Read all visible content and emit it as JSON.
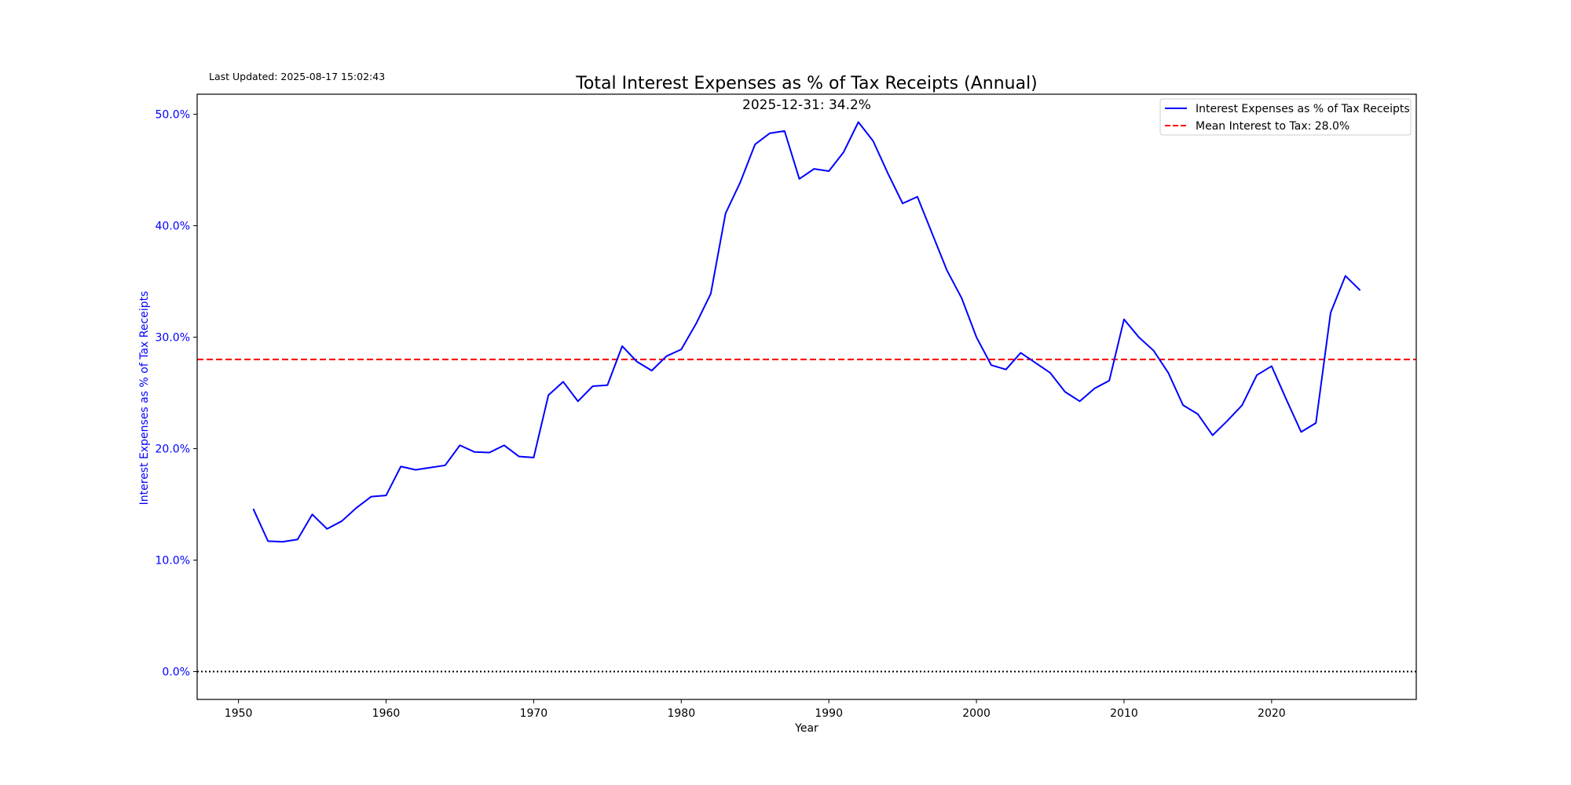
{
  "last_updated": "Last Updated: 2025-08-17 15:02:43",
  "colors": {
    "series": "#0000ff",
    "mean_line": "#ff0000",
    "zero_line": "#000000",
    "y_axis_text": "#0000ff",
    "text": "#000000"
  },
  "chart_data": {
    "type": "line",
    "title": "Total Interest Expenses as % of Tax Receipts (Annual)",
    "annotation": "2025-12-31: 34.2%",
    "xlabel": "Year",
    "ylabel": "Interest Expenses as % of Tax Receipts",
    "xlim": [
      1947.2,
      2029.8
    ],
    "ylim": [
      -2.5,
      51.8
    ],
    "x_ticks": [
      1950,
      1960,
      1970,
      1980,
      1990,
      2000,
      2010,
      2020
    ],
    "x_tick_labels": [
      "1950",
      "1960",
      "1970",
      "1980",
      "1990",
      "2000",
      "2010",
      "2020"
    ],
    "y_ticks": [
      0,
      10,
      20,
      30,
      40,
      50
    ],
    "y_tick_labels": [
      "0.0%",
      "10.0%",
      "20.0%",
      "30.0%",
      "40.0%",
      "50.0%"
    ],
    "grid": false,
    "legend_position": "upper right",
    "legend": [
      "Interest Expenses as % of Tax Receipts",
      "Mean Interest to Tax: 28.0%"
    ],
    "mean_value": 28.0,
    "zero_line_value": 0,
    "series": [
      {
        "name": "Interest Expenses as % of Tax Receipts",
        "x": [
          1951,
          1952,
          1953,
          1954,
          1955,
          1956,
          1957,
          1958,
          1959,
          1960,
          1961,
          1962,
          1963,
          1964,
          1965,
          1966,
          1967,
          1968,
          1969,
          1970,
          1971,
          1972,
          1973,
          1974,
          1975,
          1976,
          1977,
          1978,
          1979,
          1980,
          1981,
          1982,
          1983,
          1984,
          1985,
          1986,
          1987,
          1988,
          1989,
          1990,
          1991,
          1992,
          1993,
          1994,
          1995,
          1996,
          1997,
          1998,
          1999,
          2000,
          2001,
          2002,
          2003,
          2004,
          2005,
          2006,
          2007,
          2008,
          2009,
          2010,
          2011,
          2012,
          2013,
          2014,
          2015,
          2016,
          2017,
          2018,
          2019,
          2020,
          2021,
          2022,
          2023,
          2024,
          2025,
          2026
        ],
        "values": [
          14.6,
          11.7,
          11.65,
          11.85,
          14.1,
          12.8,
          13.5,
          14.7,
          15.7,
          15.8,
          18.4,
          18.1,
          18.3,
          18.5,
          20.3,
          19.7,
          19.65,
          20.3,
          19.3,
          19.2,
          24.8,
          26.0,
          24.25,
          25.6,
          25.7,
          29.2,
          27.8,
          27.0,
          28.3,
          28.9,
          31.2,
          33.9,
          41.1,
          43.9,
          47.3,
          48.3,
          48.5,
          44.2,
          45.1,
          44.9,
          46.6,
          49.3,
          47.6,
          44.7,
          42.0,
          42.6,
          39.3,
          36.0,
          33.5,
          30.0,
          27.5,
          27.1,
          28.6,
          27.7,
          26.8,
          25.1,
          24.25,
          25.4,
          26.1,
          31.6,
          30.0,
          28.8,
          26.8,
          23.9,
          23.1,
          21.2,
          22.5,
          23.9,
          26.6,
          27.4,
          24.4,
          21.5,
          22.3,
          32.2,
          35.5,
          34.2
        ]
      }
    ]
  }
}
